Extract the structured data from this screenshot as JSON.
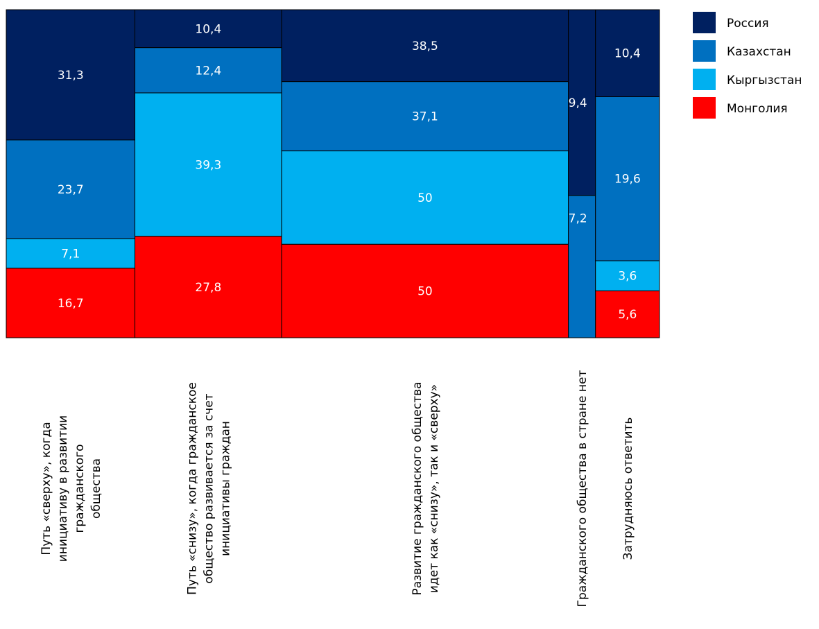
{
  "chart_data": {
    "type": "mosaic",
    "title": "",
    "series": [
      {
        "name": "Россия",
        "color": "#002060"
      },
      {
        "name": "Казахстан",
        "color": "#0070C0"
      },
      {
        "name": "Кыргызстан",
        "color": "#00B0F0"
      },
      {
        "name": "Монголия",
        "color": "#FF0000"
      }
    ],
    "categories": [
      {
        "label_lines": [
          "Путь «сверху», когда",
          "инициативу в развитии",
          "гражданского",
          "общества"
        ],
        "weight": 78.8,
        "values": [
          31.3,
          23.7,
          7.1,
          16.7
        ],
        "labels": [
          "31,3",
          "23,7",
          "7,1",
          "16,7"
        ]
      },
      {
        "label_lines": [
          "Путь «снизу», когда гражданское",
          "общество развивается за счет",
          "инициативы граждан"
        ],
        "weight": 89.9,
        "values": [
          10.4,
          12.4,
          39.3,
          27.8
        ],
        "labels": [
          "10,4",
          "12,4",
          "39,3",
          "27,8"
        ]
      },
      {
        "label_lines": [
          "Развитие гражданского общества",
          "идет как «снизу», так и «сверху»"
        ],
        "weight": 175.6,
        "values": [
          38.5,
          37.1,
          50,
          50
        ],
        "labels": [
          "38,5",
          "37,1",
          "50",
          "50"
        ]
      },
      {
        "label_lines": [
          "Гражданского общества в стране нет"
        ],
        "weight": 16.6,
        "values": [
          9.4,
          7.2,
          0,
          0
        ],
        "labels": [
          "9,4",
          "7,2",
          "",
          ""
        ]
      },
      {
        "label_lines": [
          "Затрудняюсь ответить"
        ],
        "weight": 39.2,
        "values": [
          10.4,
          19.6,
          3.6,
          5.6
        ],
        "labels": [
          "10,4",
          "19,6",
          "3,6",
          "5,6"
        ]
      }
    ]
  }
}
